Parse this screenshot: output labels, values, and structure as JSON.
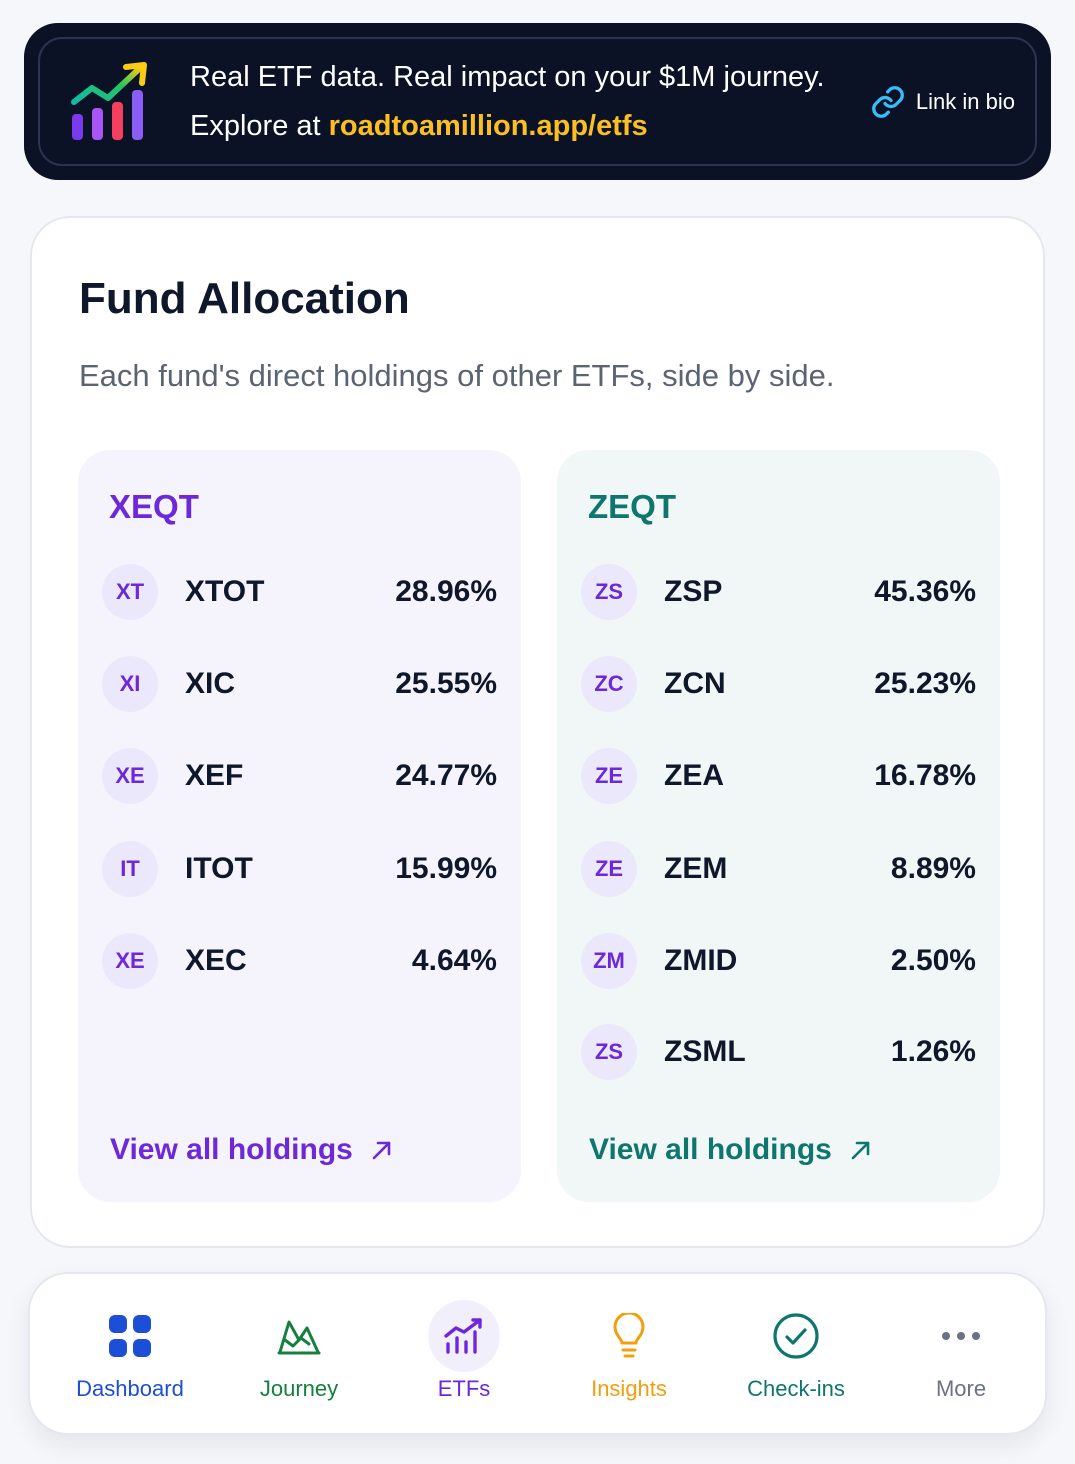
{
  "banner": {
    "line1": "Real ETF data. Real impact on your $1M journey.",
    "line2_prefix": "Explore at ",
    "url": "roadtoamillion.app/etfs",
    "link_label": "Link in bio",
    "logo_icon": "growth-chart-icon",
    "link_icon": "link-icon"
  },
  "card": {
    "title": "Fund Allocation",
    "subtitle": "Each fund's direct holdings of other ETFs, side by side."
  },
  "funds": [
    {
      "name": "XEQT",
      "accent": "#6d28d9",
      "holdings": [
        {
          "badge": "XT",
          "ticker": "XTOT",
          "pct": "28.96%"
        },
        {
          "badge": "XI",
          "ticker": "XIC",
          "pct": "25.55%"
        },
        {
          "badge": "XE",
          "ticker": "XEF",
          "pct": "24.77%"
        },
        {
          "badge": "IT",
          "ticker": "ITOT",
          "pct": "15.99%"
        },
        {
          "badge": "XE",
          "ticker": "XEC",
          "pct": "4.64%"
        }
      ],
      "view_all": "View all holdings"
    },
    {
      "name": "ZEQT",
      "accent": "#0f766e",
      "holdings": [
        {
          "badge": "ZS",
          "ticker": "ZSP",
          "pct": "45.36%"
        },
        {
          "badge": "ZC",
          "ticker": "ZCN",
          "pct": "25.23%"
        },
        {
          "badge": "ZE",
          "ticker": "ZEA",
          "pct": "16.78%"
        },
        {
          "badge": "ZE",
          "ticker": "ZEM",
          "pct": "8.89%"
        },
        {
          "badge": "ZM",
          "ticker": "ZMID",
          "pct": "2.50%"
        },
        {
          "badge": "ZS",
          "ticker": "ZSML",
          "pct": "1.26%"
        }
      ],
      "view_all": "View all holdings"
    }
  ],
  "nav": {
    "active": "ETFs",
    "items": [
      {
        "label": "Dashboard",
        "icon": "grid-icon",
        "color": "#1d4ed8"
      },
      {
        "label": "Journey",
        "icon": "mountain-icon",
        "color": "#15803d"
      },
      {
        "label": "ETFs",
        "icon": "bar-chart-icon",
        "color": "#6d28d9"
      },
      {
        "label": "Insights",
        "icon": "lightbulb-icon",
        "color": "#f59e0b"
      },
      {
        "label": "Check-ins",
        "icon": "check-circle-icon",
        "color": "#0f766e"
      },
      {
        "label": "More",
        "icon": "more-icon",
        "color": "#6b7280"
      }
    ]
  }
}
